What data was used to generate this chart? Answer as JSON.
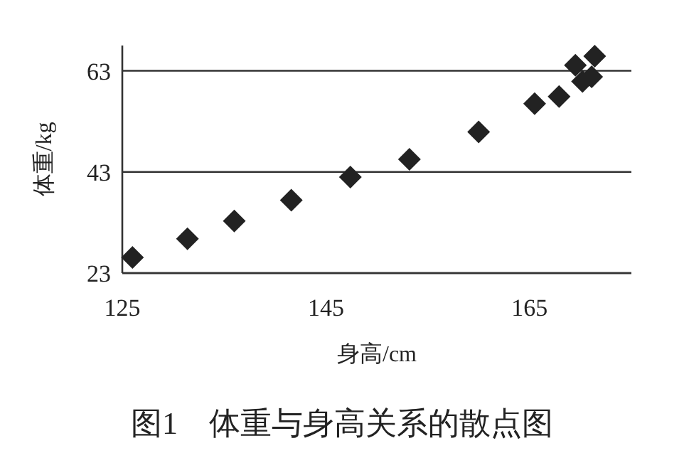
{
  "chart_data": {
    "type": "scatter",
    "title": "图1　体重与身高关系的散点图",
    "xlabel": "身高/cm",
    "ylabel": "体重/kg",
    "x": [
      126.0,
      131.4,
      136.0,
      141.6,
      147.4,
      153.2,
      160.0,
      165.5,
      167.9,
      169.5,
      170.2,
      171.1,
      171.4
    ],
    "series": [
      {
        "color": "#222222",
        "values": [
          26.1,
          29.8,
          33.3,
          37.4,
          42.0,
          45.5,
          50.9,
          56.5,
          57.9,
          64.1,
          60.9,
          61.8,
          65.9
        ]
      }
    ],
    "xlim": [
      125,
      175
    ],
    "xticks": [
      125,
      145,
      165
    ],
    "ylim": [
      23,
      68
    ],
    "yticks": [
      23,
      43,
      63
    ],
    "grid": "y",
    "marker": "diamond"
  }
}
